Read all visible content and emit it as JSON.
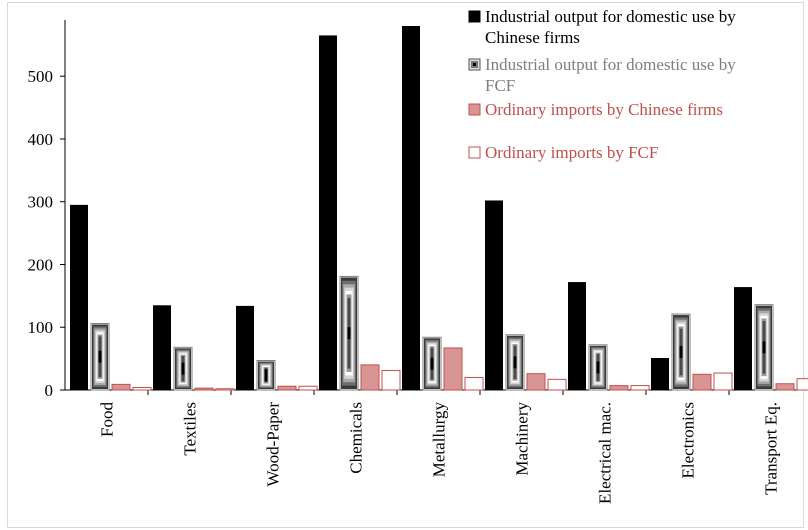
{
  "chart_data": {
    "type": "bar",
    "title": "",
    "xlabel": "",
    "ylabel": "",
    "ylim": [
      0,
      580
    ],
    "yticks": [
      0,
      100,
      200,
      300,
      400,
      500
    ],
    "grid": false,
    "legend_position": "top-right",
    "categories": [
      "Food",
      "Textiles",
      "Wood-Paper",
      "Chemicals",
      "Metallurgy",
      "Machinery",
      "Electrical mac.",
      "Electronics",
      "Transport Eq."
    ],
    "series": [
      {
        "name": "Industrial output for domestic use  by Chinese firms",
        "legend_lines": [
          "Industrial output for domestic use  by",
          "Chinese firms"
        ],
        "color": "#000000",
        "text_color": "#000000",
        "values": [
          295,
          135,
          134,
          565,
          580,
          302,
          172,
          51,
          164
        ]
      },
      {
        "name": "Industrial output for domestic use  by FCF",
        "legend_lines": [
          "Industrial output for domestic use  by",
          "FCF"
        ],
        "color": "#8a8a8a",
        "text_color": "#7f7f7f",
        "values": [
          106,
          68,
          47,
          181,
          84,
          88,
          72,
          121,
          136
        ]
      },
      {
        "name": "Ordinary imports  by Chinese firms",
        "legend_lines": [
          "Ordinary imports  by Chinese firms"
        ],
        "color": "#d99594",
        "text_color": "#c0504d",
        "values": [
          9,
          3,
          6,
          40,
          67,
          26,
          7,
          25,
          10
        ]
      },
      {
        "name": "Ordinary imports by FCF",
        "legend_lines": [
          "Ordinary imports by FCF"
        ],
        "color": "#ffffff",
        "text_color": "#c0504d",
        "values": [
          4,
          2,
          6,
          31,
          20,
          17,
          7,
          27,
          18
        ]
      }
    ]
  }
}
